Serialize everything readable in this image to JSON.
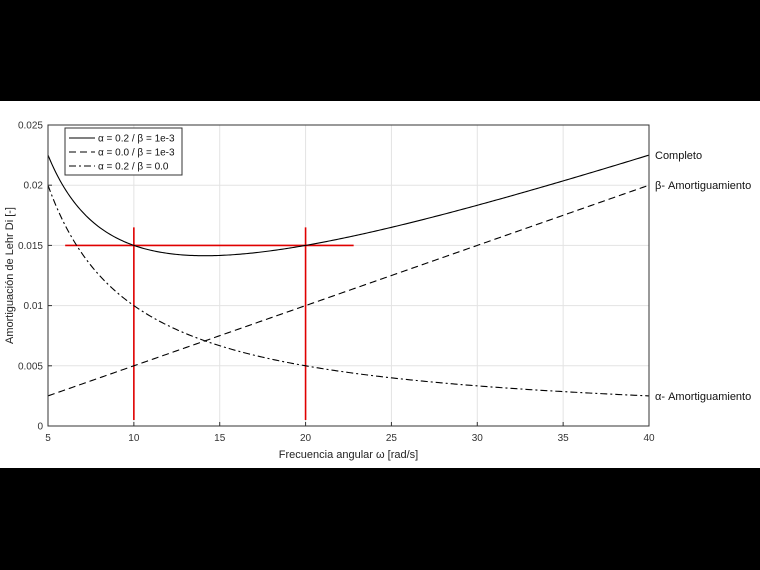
{
  "chart_data": {
    "type": "line",
    "xlabel": "Frecuencia angular ω [rad/s]",
    "ylabel": "Amortiguación de Lehr Di [-]",
    "xlim": [
      5,
      40
    ],
    "ylim": [
      0,
      0.025
    ],
    "xticks": [
      "5",
      "10",
      "15",
      "20",
      "25",
      "30",
      "35",
      "40"
    ],
    "yticks": [
      "0",
      "0.005",
      "0.01",
      "0.015",
      "0.02",
      "0.025"
    ],
    "grid": true,
    "legend_position": "top-left",
    "series": [
      {
        "name": "α = 0.2 / β = 1e-3",
        "style": "solid",
        "color": "#000000",
        "alpha": 0.2,
        "beta": 0.001,
        "x": [
          5,
          6,
          7,
          8,
          9,
          10,
          12,
          14,
          16,
          18,
          20,
          25,
          30,
          35,
          40
        ],
        "y": [
          0.0225,
          0.01967,
          0.01779,
          0.0165,
          0.01561,
          0.015,
          0.01433,
          0.01414,
          0.01425,
          0.01456,
          0.015,
          0.0165,
          0.01833,
          0.02036,
          0.0225
        ]
      },
      {
        "name": "α = 0.0 / β = 1e-3",
        "style": "dashed",
        "color": "#000000",
        "alpha": 0.0,
        "beta": 0.001,
        "x": [
          5,
          10,
          20,
          40
        ],
        "y": [
          0.0025,
          0.005,
          0.01,
          0.02
        ]
      },
      {
        "name": "α = 0.2 / β = 0.0",
        "style": "dashdot",
        "color": "#000000",
        "alpha": 0.2,
        "beta": 0.0,
        "x": [
          5,
          6,
          7,
          8,
          9,
          10,
          12,
          14,
          16,
          18,
          20,
          25,
          30,
          35,
          40
        ],
        "y": [
          0.02,
          0.01667,
          0.01429,
          0.0125,
          0.01111,
          0.01,
          0.00833,
          0.00714,
          0.00625,
          0.00556,
          0.005,
          0.004,
          0.00333,
          0.00286,
          0.0025
        ]
      }
    ],
    "reference_lines": {
      "color": "#e00000",
      "horizontal": {
        "y": 0.015,
        "x_from": 6,
        "x_to": 22.8
      },
      "vertical": [
        {
          "x": 10,
          "y_from": 0.0005,
          "y_to": 0.0165
        },
        {
          "x": 20,
          "y_from": 0.0005,
          "y_to": 0.0165
        }
      ]
    },
    "annotations": [
      {
        "text": "Completo",
        "x": 40,
        "y": 0.0225
      },
      {
        "text": "β- Amortiguamiento",
        "x": 40,
        "y": 0.02
      },
      {
        "text": "α- Amortiguamiento",
        "x": 40,
        "y": 0.0025
      }
    ]
  }
}
